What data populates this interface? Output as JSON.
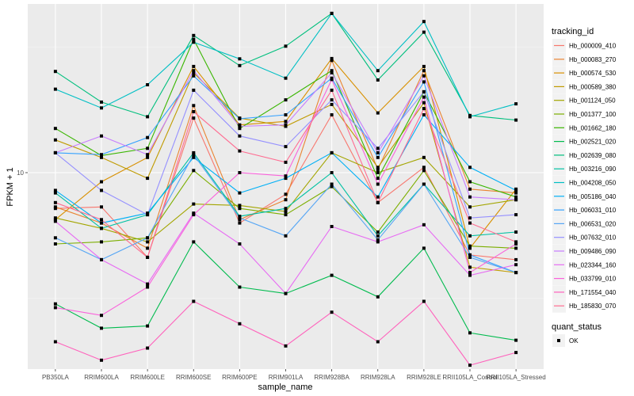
{
  "chart_data": {
    "type": "line",
    "title": "",
    "xlabel": "sample_name",
    "ylabel": "FPKM + 1",
    "y_scale": "log10",
    "ylim": [
      1.65,
      47
    ],
    "y_ticks": [
      {
        "value": 10,
        "label": "10"
      }
    ],
    "grid": true,
    "legend_position": "right",
    "x": [
      "PB350LA",
      "RRIM600LA",
      "RRIM600LE",
      "RRIM600SE",
      "RRIM600PE",
      "RRIM901LA",
      "RRIM928BA",
      "RRIM928LA",
      "RRIM928LE",
      "RRII105LA_Control",
      "RRII105LA_Stressed"
    ],
    "series": [
      {
        "name": "Hb_000009_410",
        "color": "#F8766D",
        "values": [
          7.2,
          7.3,
          4.6,
          16.5,
          6.3,
          8.2,
          17.0,
          7.6,
          10.5,
          4.7,
          4.5
        ]
      },
      {
        "name": "Hb_000083_270",
        "color": "#EA8331",
        "values": [
          7.3,
          6.3,
          5.0,
          18.5,
          6.5,
          7.8,
          28.0,
          10.3,
          25.5,
          8.6,
          8.3
        ]
      },
      {
        "name": "Hb_000574_530",
        "color": "#D89000",
        "values": [
          6.5,
          9.2,
          11.5,
          26.5,
          15.5,
          16.0,
          28.5,
          17.3,
          26.5,
          5.0,
          8.6
        ]
      },
      {
        "name": "Hb_000589_380",
        "color": "#C09B00",
        "values": [
          13.5,
          11.5,
          9.5,
          25.0,
          16.5,
          15.3,
          18.7,
          10.5,
          19.0,
          4.2,
          4.0
        ]
      },
      {
        "name": "Hb_001124_050",
        "color": "#A3A500",
        "values": [
          6.6,
          6.0,
          5.3,
          7.5,
          7.4,
          7.0,
          12.0,
          10.0,
          11.5,
          7.3,
          7.8
        ]
      },
      {
        "name": "Hb_001377_100",
        "color": "#7CAE00",
        "values": [
          5.2,
          5.3,
          5.5,
          10.2,
          7.2,
          6.8,
          8.8,
          5.8,
          10.2,
          5.1,
          5.0
        ]
      },
      {
        "name": "Hb_001662_180",
        "color": "#39B600",
        "values": [
          15.0,
          11.7,
          12.5,
          34.0,
          15.0,
          19.5,
          25.5,
          9.5,
          21.0,
          9.2,
          8.0
        ]
      },
      {
        "name": "Hb_002521_020",
        "color": "#00BB4E",
        "values": [
          3.0,
          2.4,
          2.45,
          5.3,
          3.5,
          3.3,
          3.9,
          3.2,
          5.0,
          2.3,
          2.15
        ]
      },
      {
        "name": "Hb_002639_080",
        "color": "#00BF7D",
        "values": [
          25.3,
          19.1,
          16.7,
          35.2,
          26.7,
          31.9,
          43.1,
          23.4,
          36.3,
          16.9,
          16.2
        ]
      },
      {
        "name": "Hb_003216_090",
        "color": "#00C1A3",
        "values": [
          8.3,
          6.0,
          6.8,
          12.0,
          6.7,
          7.2,
          10.0,
          5.6,
          9.0,
          5.6,
          5.8
        ]
      },
      {
        "name": "Hb_004208_050",
        "color": "#00BFC4",
        "values": [
          21.5,
          18.1,
          22.4,
          33.1,
          28.4,
          23.8,
          43.1,
          25.5,
          40.0,
          16.7,
          18.8
        ]
      },
      {
        "name": "Hb_005186_040",
        "color": "#00B0F6",
        "values": [
          8.5,
          6.3,
          6.9,
          11.5,
          8.3,
          9.5,
          12.0,
          8.0,
          17.0,
          10.5,
          8.5
        ]
      },
      {
        "name": "Hb_006031_010",
        "color": "#35A2FF",
        "values": [
          12.0,
          11.8,
          13.8,
          24.3,
          16.4,
          17.0,
          23.8,
          11.5,
          23.0,
          4.7,
          4.0
        ]
      },
      {
        "name": "Hb_006531_020",
        "color": "#56A6F5",
        "values": [
          5.5,
          4.5,
          5.5,
          11.8,
          6.6,
          5.6,
          9.0,
          5.4,
          9.0,
          4.6,
          4.0
        ]
      },
      {
        "name": "Hb_007632_010",
        "color": "#9590FF",
        "values": [
          12.0,
          8.5,
          6.8,
          21.3,
          14.0,
          12.7,
          19.5,
          12.5,
          21.0,
          6.6,
          6.8
        ]
      },
      {
        "name": "Hb_009486_090",
        "color": "#C77CFF",
        "values": [
          12.0,
          14.0,
          11.8,
          25.5,
          15.3,
          15.5,
          25.0,
          12.0,
          24.3,
          8.0,
          7.8
        ]
      },
      {
        "name": "Hb_023344_160",
        "color": "#E76BF3",
        "values": [
          6.4,
          4.5,
          3.6,
          6.9,
          5.2,
          3.3,
          6.1,
          5.3,
          6.2,
          3.9,
          4.3
        ]
      },
      {
        "name": "Hb_033799_010",
        "color": "#FA62DB",
        "values": [
          2.9,
          2.7,
          3.5,
          6.8,
          10.0,
          9.7,
          23.5,
          9.0,
          20.0,
          4.0,
          5.2
        ]
      },
      {
        "name": "Hb_171554_040",
        "color": "#FF62BC",
        "values": [
          2.12,
          1.79,
          2.0,
          3.07,
          2.5,
          2.04,
          2.78,
          2.12,
          3.07,
          1.71,
          1.92
        ]
      },
      {
        "name": "Hb_185830_070",
        "color": "#FF6C91",
        "values": [
          7.6,
          6.5,
          4.6,
          17.5,
          12.2,
          11.0,
          21.3,
          7.6,
          18.0,
          6.3,
          5.3
        ]
      }
    ],
    "legends": [
      {
        "title": "tracking_id",
        "type": "color-lines"
      },
      {
        "title": "quant_status",
        "type": "shape",
        "entries": [
          {
            "label": "OK",
            "shape": "square"
          }
        ]
      }
    ]
  }
}
